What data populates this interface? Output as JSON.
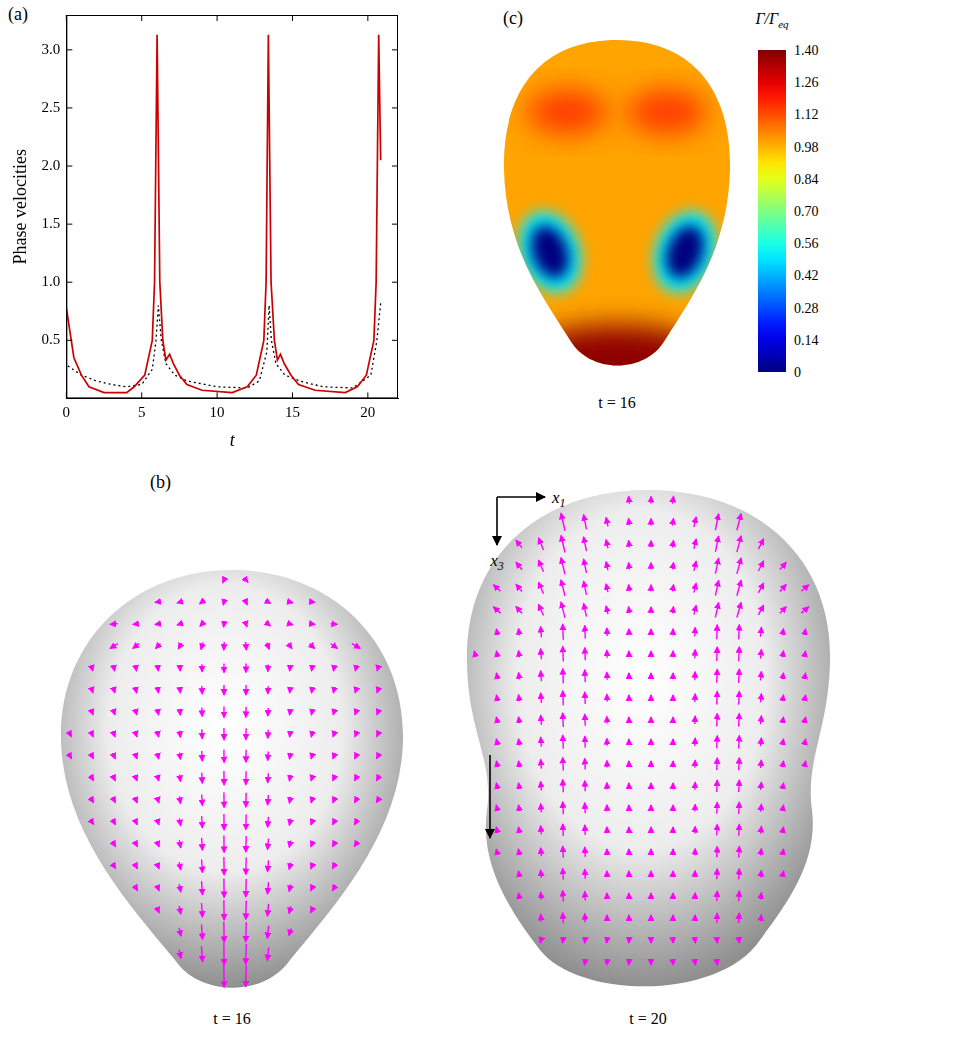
{
  "chart_data": {
    "type": "line",
    "label": "(a)",
    "y_label": "Phase velocities",
    "x_label": "t",
    "xlim": [
      0,
      22
    ],
    "xticks": [
      0,
      5,
      10,
      15,
      20
    ],
    "ylim": [
      0,
      3.3
    ],
    "yticks": [
      0.5,
      {
        "value": 1,
        "label": "1.0"
      },
      1.5,
      {
        "value": 2,
        "label": "2.0"
      },
      2.5,
      {
        "value": 3,
        "label": "3.0"
      }
    ],
    "grid": false,
    "series": [
      {
        "color": "#cc0000",
        "line_style": "solid",
        "x": [
          0,
          0.5,
          1,
          1.5,
          2.5,
          4,
          4.5,
          5.2,
          5.7,
          5.85,
          6.02,
          6.2,
          6.4,
          6.6,
          6.85,
          7.1,
          7.5,
          8,
          9,
          11,
          12,
          12.6,
          13.1,
          13.25,
          13.4,
          13.58,
          13.8,
          14,
          14.2,
          14.45,
          14.9,
          15.4,
          16.5,
          18.5,
          19.3,
          19.9,
          20.4,
          20.55,
          20.72,
          20.85
        ],
        "values": [
          0.78,
          0.35,
          0.2,
          0.1,
          0.05,
          0.05,
          0.1,
          0.2,
          0.5,
          1.0,
          3.13,
          1.0,
          0.5,
          0.33,
          0.38,
          0.3,
          0.2,
          0.12,
          0.07,
          0.05,
          0.1,
          0.2,
          0.5,
          1.0,
          3.13,
          1.0,
          0.5,
          0.33,
          0.38,
          0.3,
          0.2,
          0.12,
          0.07,
          0.05,
          0.1,
          0.2,
          0.5,
          1.0,
          3.13,
          2.05
        ]
      },
      {
        "color": "#000000",
        "line_style": "dotted",
        "x": [
          0.1,
          1,
          2,
          3,
          4,
          5,
          5.7,
          5.95,
          6.1,
          6.3,
          6.6,
          7.2,
          8,
          10,
          12,
          12.8,
          13.3,
          13.45,
          13.6,
          13.9,
          14.5,
          15.5,
          17,
          19,
          20.2,
          20.6,
          20.85
        ],
        "values": [
          0.28,
          0.2,
          0.15,
          0.12,
          0.1,
          0.12,
          0.25,
          0.5,
          0.8,
          0.5,
          0.3,
          0.2,
          0.15,
          0.1,
          0.09,
          0.15,
          0.4,
          0.8,
          0.5,
          0.3,
          0.2,
          0.15,
          0.1,
          0.09,
          0.2,
          0.5,
          0.82
        ]
      }
    ]
  },
  "panel_b": {
    "label": "(b)",
    "axis_labels": [
      {
        "main": "x",
        "sub": "1"
      },
      {
        "main": "x",
        "sub": "3"
      }
    ],
    "captions": [
      "t = 16",
      "t = 20"
    ]
  },
  "panel_c": {
    "label": "(c)",
    "caption": "t = 16",
    "colorbar": {
      "title": {
        "main": "Γ/Γ",
        "sub": "eq"
      },
      "range": [
        0,
        1.4
      ],
      "ticks": [
        0,
        0.14,
        0.28,
        0.42,
        0.56,
        {
          "value": 0.7,
          "label": "0.70"
        },
        0.84,
        0.98,
        1.12,
        1.26,
        {
          "value": 1.4,
          "label": "1.40"
        }
      ]
    },
    "field": {
      "top": 1.0,
      "upper_lobes": 1.15,
      "bottom": 1.38,
      "spots": 0
    }
  }
}
